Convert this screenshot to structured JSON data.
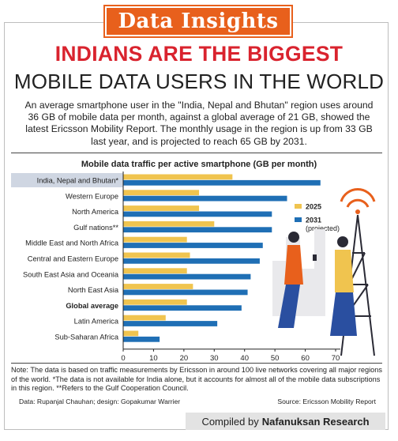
{
  "badge": "Data Insights",
  "headline": "INDIANS ARE THE BIGGEST",
  "subheadline": "MOBILE DATA USERS IN THE WORLD",
  "intro": "An average smartphone user in the \"India, Nepal and Bhutan\" region uses around 36 GB of mobile data per month, against a global average of 21 GB, showed the latest Ericsson Mobility Report. The monthly usage in the region is up from 33 GB last year, and is projected to reach 65 GB by 2031.",
  "colors": {
    "badge": "#e8601c",
    "headline": "#d9232e",
    "series_2025": "#f0c44f",
    "series_2031": "#1f6fb5",
    "row_highlight": "#cfd6e2"
  },
  "chart_data": {
    "type": "bar",
    "orientation": "horizontal",
    "title": "Mobile data traffic per active smartphone (GB per month)",
    "categories": [
      "India, Nepal and Bhutan*",
      "Western Europe",
      "North America",
      "Gulf nations**",
      "Middle East and North Africa",
      "Central and Eastern Europe",
      "South East Asia and Oceania",
      "North East Asia",
      "Global average",
      "Latin America",
      "Sub-Saharan Africa"
    ],
    "bold_category": "Global average",
    "highlighted_category": "India, Nepal and Bhutan*",
    "series": [
      {
        "name": "2025",
        "values": [
          36,
          25,
          25,
          30,
          21,
          22,
          21,
          23,
          21,
          14,
          5
        ]
      },
      {
        "name": "2031\n(projected)",
        "values": [
          65,
          54,
          49,
          49,
          46,
          45,
          42,
          41,
          39,
          31,
          12
        ]
      }
    ],
    "xlim": [
      0,
      70
    ],
    "xticks": [
      0,
      10,
      20,
      30,
      40,
      50,
      60,
      70
    ],
    "legend_position": "right",
    "grid": false
  },
  "note": "Note: The data is based on traffic measurements by Ericsson in around 100 live networks covering all major regions of the world. *The data is not available for India alone, but it accounts for almost all of the mobile data subscriptions in this region. **Refers to the Gulf Cooperation Council.",
  "credit_left": "Data: Rupanjal Chauhan; design: Gopakumar Warrier",
  "credit_right": "Source: Ericsson Mobility Report",
  "compiled_prefix": "Compiled by",
  "compiled_name": "Nafanuksan Research"
}
